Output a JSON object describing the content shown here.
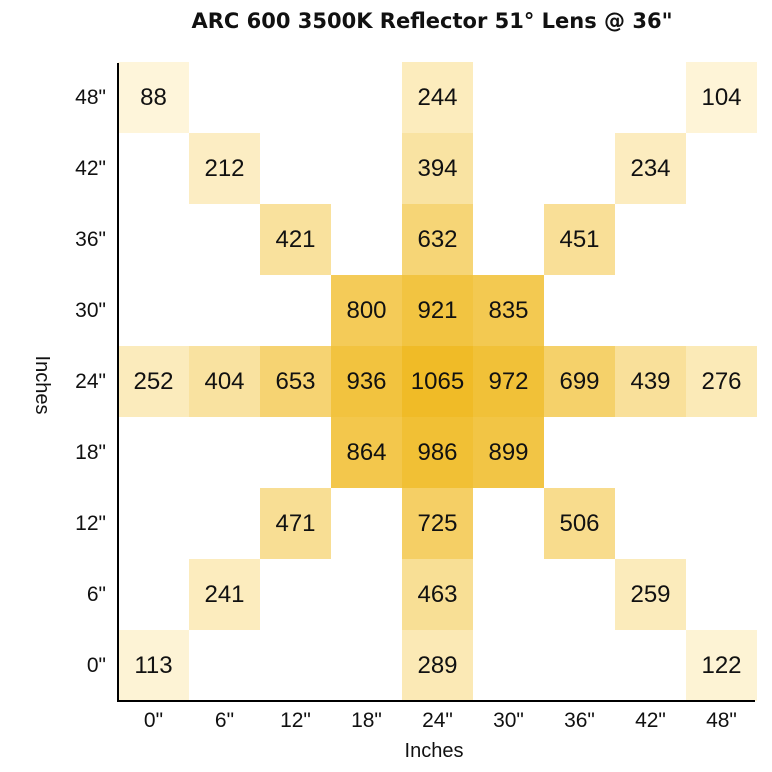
{
  "chart_data": {
    "type": "heatmap",
    "title": "ARC 600 3500K Reflector 51° Lens @ 36\"",
    "xlabel": "Inches",
    "ylabel": "Inches",
    "x_ticks": [
      "0\"",
      "6\"",
      "12\"",
      "18\"",
      "24\"",
      "30\"",
      "36\"",
      "42\"",
      "48\""
    ],
    "y_ticks": [
      "0\"",
      "6\"",
      "12\"",
      "18\"",
      "24\"",
      "30\"",
      "36\"",
      "42\"",
      "48\""
    ],
    "value_range": [
      0,
      1065
    ],
    "colors": {
      "low": "#fffaea",
      "high": "#f0bb27"
    },
    "cells": [
      {
        "x": 0,
        "y": 48,
        "value": 88
      },
      {
        "x": 24,
        "y": 48,
        "value": 244
      },
      {
        "x": 48,
        "y": 48,
        "value": 104
      },
      {
        "x": 6,
        "y": 42,
        "value": 212
      },
      {
        "x": 24,
        "y": 42,
        "value": 394
      },
      {
        "x": 42,
        "y": 42,
        "value": 234
      },
      {
        "x": 12,
        "y": 36,
        "value": 421
      },
      {
        "x": 24,
        "y": 36,
        "value": 632
      },
      {
        "x": 36,
        "y": 36,
        "value": 451
      },
      {
        "x": 18,
        "y": 30,
        "value": 800
      },
      {
        "x": 24,
        "y": 30,
        "value": 921
      },
      {
        "x": 30,
        "y": 30,
        "value": 835
      },
      {
        "x": 0,
        "y": 24,
        "value": 252
      },
      {
        "x": 6,
        "y": 24,
        "value": 404
      },
      {
        "x": 12,
        "y": 24,
        "value": 653
      },
      {
        "x": 18,
        "y": 24,
        "value": 936
      },
      {
        "x": 24,
        "y": 24,
        "value": 1065
      },
      {
        "x": 30,
        "y": 24,
        "value": 972
      },
      {
        "x": 36,
        "y": 24,
        "value": 699
      },
      {
        "x": 42,
        "y": 24,
        "value": 439
      },
      {
        "x": 48,
        "y": 24,
        "value": 276
      },
      {
        "x": 18,
        "y": 18,
        "value": 864
      },
      {
        "x": 24,
        "y": 18,
        "value": 986
      },
      {
        "x": 30,
        "y": 18,
        "value": 899
      },
      {
        "x": 12,
        "y": 12,
        "value": 471
      },
      {
        "x": 24,
        "y": 12,
        "value": 725
      },
      {
        "x": 36,
        "y": 12,
        "value": 506
      },
      {
        "x": 6,
        "y": 6,
        "value": 241
      },
      {
        "x": 24,
        "y": 6,
        "value": 463
      },
      {
        "x": 42,
        "y": 6,
        "value": 259
      },
      {
        "x": 0,
        "y": 0,
        "value": 113
      },
      {
        "x": 24,
        "y": 0,
        "value": 289
      },
      {
        "x": 48,
        "y": 0,
        "value": 122
      }
    ]
  }
}
